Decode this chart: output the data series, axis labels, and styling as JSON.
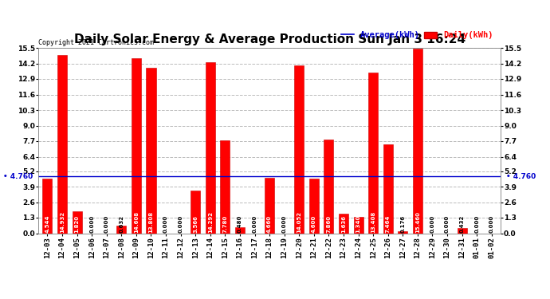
{
  "title": "Daily Solar Energy & Average Production Sun Jan 3 16:24",
  "copyright": "Copyright 2021 Cartronics.com",
  "legend_average": "Average(kWh)",
  "legend_daily": "Daily(kWh)",
  "average_value": 4.76,
  "categories": [
    "12-03",
    "12-04",
    "12-05",
    "12-06",
    "12-07",
    "12-08",
    "12-09",
    "12-10",
    "12-11",
    "12-12",
    "12-13",
    "12-14",
    "12-15",
    "12-16",
    "12-17",
    "12-18",
    "12-19",
    "12-20",
    "12-21",
    "12-22",
    "12-23",
    "12-24",
    "12-25",
    "12-26",
    "12-27",
    "12-28",
    "12-29",
    "12-30",
    "12-31",
    "01-01",
    "01-02"
  ],
  "values": [
    4.544,
    14.932,
    1.82,
    0.0,
    0.0,
    0.632,
    14.608,
    13.808,
    0.0,
    0.0,
    3.566,
    14.292,
    7.78,
    0.48,
    0.0,
    4.66,
    0.0,
    14.052,
    4.6,
    7.86,
    1.636,
    1.34,
    13.408,
    7.464,
    0.176,
    15.46,
    0.0,
    0.0,
    0.432,
    0.0,
    0.0
  ],
  "bar_color": "#ff0000",
  "bar_edge_color": "#cc0000",
  "average_line_color": "#0000cc",
  "background_color": "#ffffff",
  "grid_color": "#bbbbbb",
  "title_fontsize": 11,
  "tick_fontsize": 6.5,
  "ylim": [
    0.0,
    15.5
  ],
  "yticks": [
    0.0,
    1.3,
    2.6,
    3.9,
    5.2,
    6.4,
    7.7,
    9.0,
    10.3,
    11.6,
    12.9,
    14.2,
    15.5
  ]
}
